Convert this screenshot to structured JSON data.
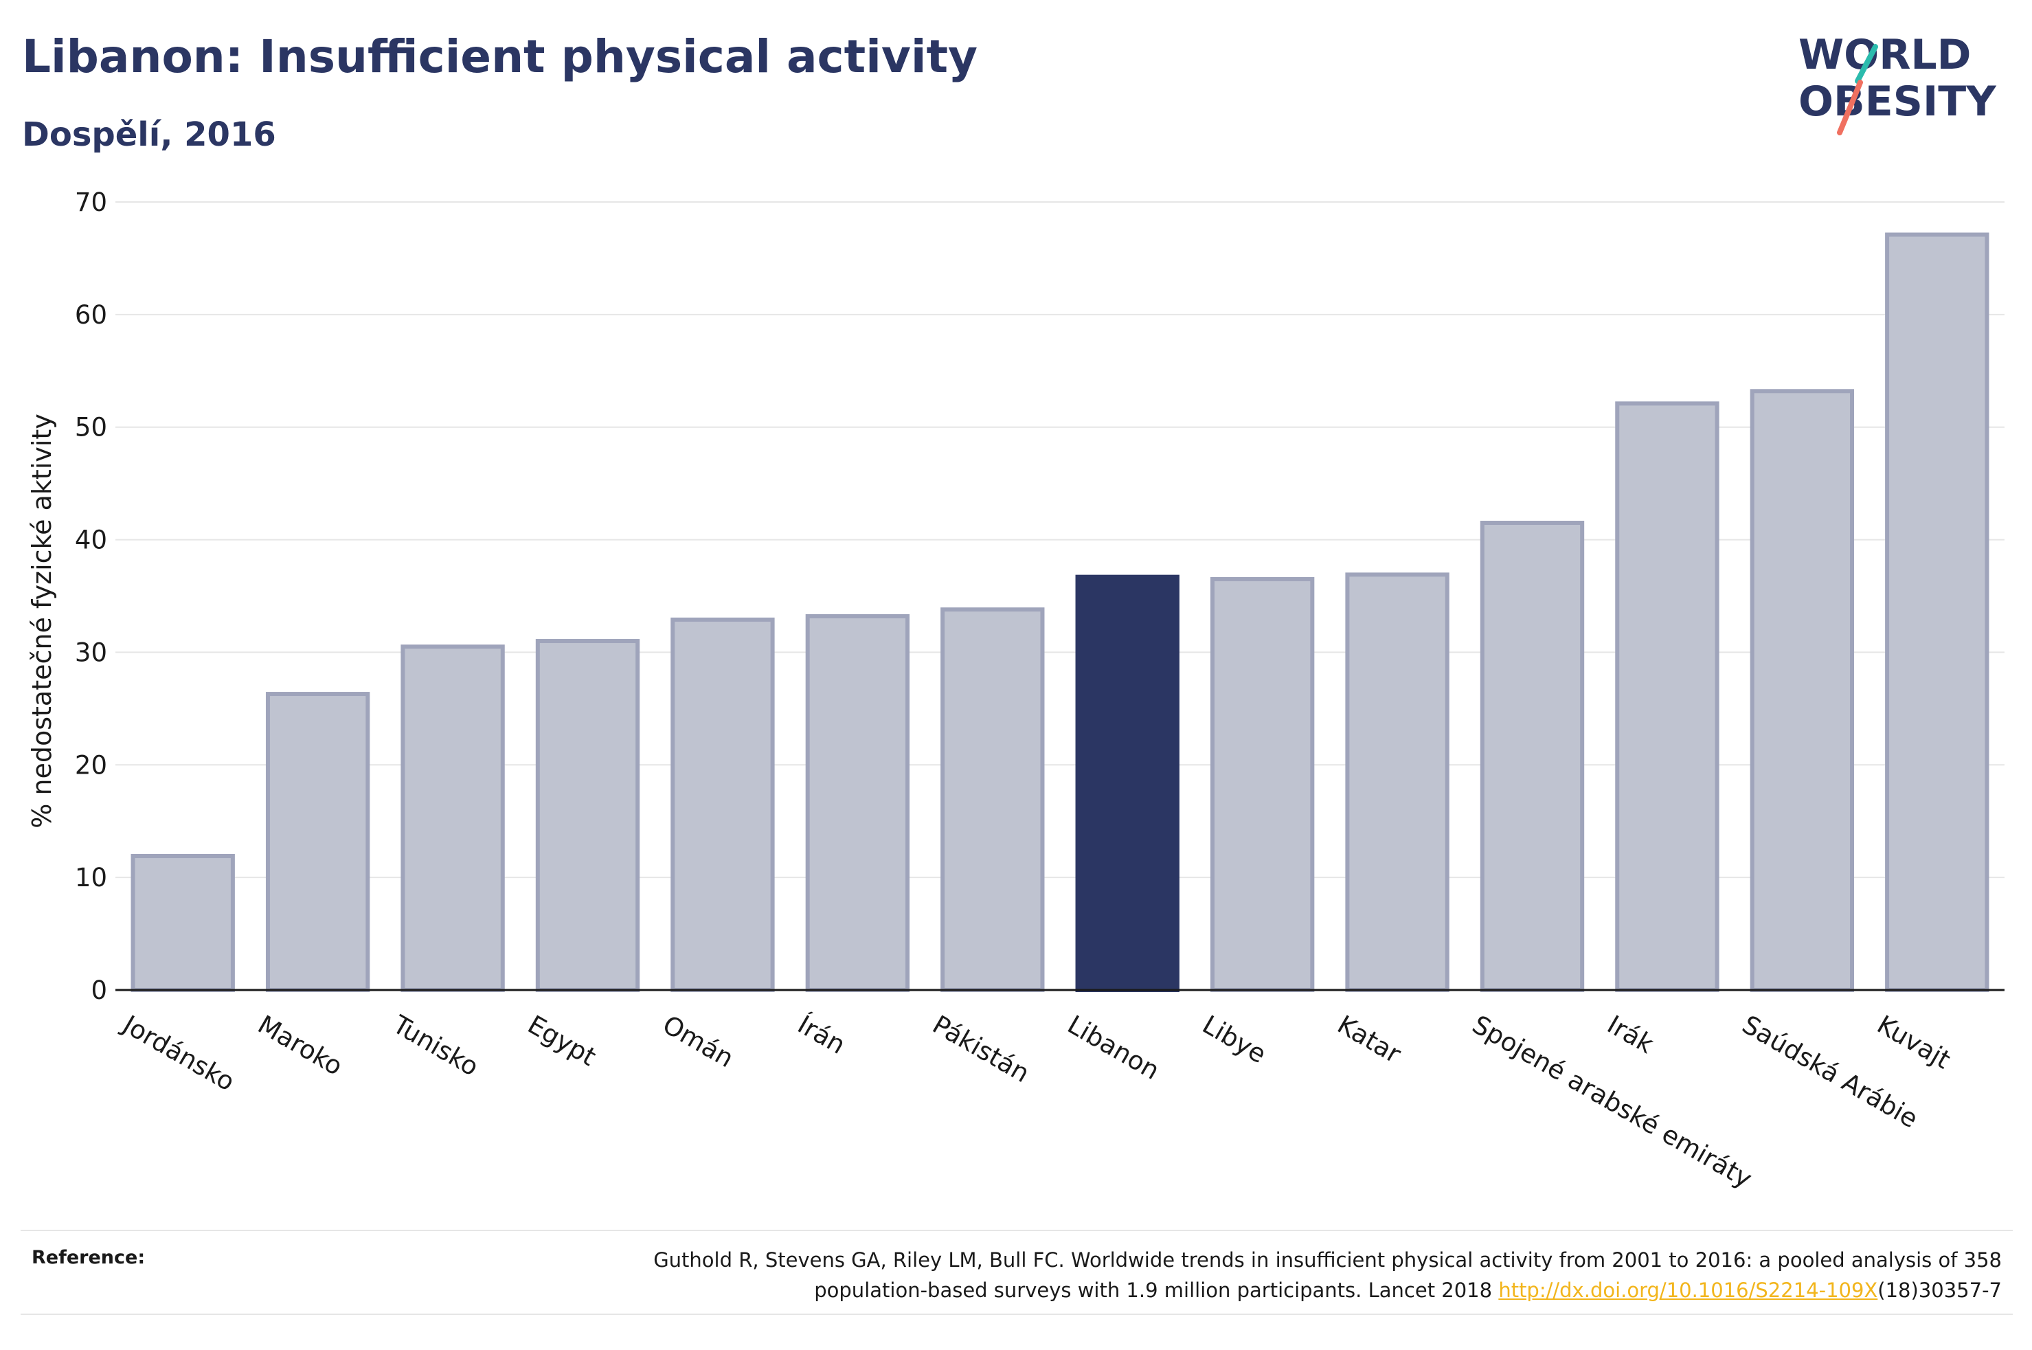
{
  "header": {
    "title": "Libanon: Insufficient physical activity",
    "subtitle": "Dospělí, 2016"
  },
  "logo": {
    "line1": "WORLD",
    "line2": "OBESITY",
    "brand_color": "#2b3663",
    "accent_teal": "#2bbbad",
    "accent_coral": "#f07060"
  },
  "chart_data": {
    "type": "bar",
    "title": "Libanon: Insufficient physical activity",
    "subtitle": "Dospělí, 2016",
    "xlabel": "",
    "ylabel": "% nedostatečné fyzické aktivity",
    "ylim": [
      0,
      70
    ],
    "yticks": [
      "0",
      "10",
      "20",
      "30",
      "40",
      "50",
      "60",
      "70"
    ],
    "grid": true,
    "highlight": "Libanon",
    "colors": {
      "highlight": "#2b3663",
      "default": "#bfc3d0",
      "default_edge": "#9fa4bb",
      "grid": "#e6e6e6"
    },
    "categories": [
      "Jordánsko",
      "Maroko",
      "Tunisko",
      "Egypt",
      "Omán",
      "Írán",
      "Pákistán",
      "Libanon",
      "Libye",
      "Katar",
      "Spojené arabské emiráty",
      "Irák",
      "Saúdská Arábie",
      "Kuvajt"
    ],
    "values": [
      11.9,
      26.3,
      30.5,
      31.0,
      32.9,
      33.2,
      33.8,
      36.7,
      36.5,
      36.9,
      41.5,
      52.1,
      53.2,
      67.1
    ]
  },
  "reference": {
    "label": "Reference:",
    "line1": "Guthold R, Stevens GA, Riley LM, Bull FC. Worldwide trends in insufficient physical activity from 2001 to 2016: a pooled analysis of 358",
    "line2_before": "population-based surveys with 1.9 million participants. Lancet 2018 ",
    "link": "http://dx.doi.org/10.1016/S2214-109X",
    "line2_after": "(18)30357-7"
  }
}
